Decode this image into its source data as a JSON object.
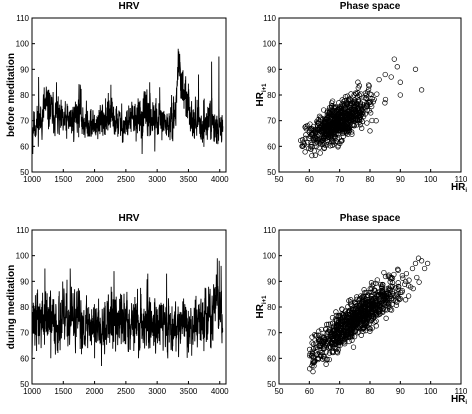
{
  "chart_data": [
    {
      "id": "hrv-before",
      "type": "line",
      "title": "HRV",
      "ylabel": "before meditation",
      "xlabel": "",
      "xlim": [
        1000,
        4100
      ],
      "ylim": [
        50,
        110
      ],
      "xticks": [
        1000,
        1500,
        2000,
        2500,
        3000,
        3500,
        4000
      ],
      "yticks": [
        50,
        60,
        70,
        80,
        90,
        100,
        110
      ],
      "segments": [
        {
          "x": [
            1000,
            1150,
            1200,
            1380,
            1450,
            1650,
            1750,
            1800,
            2000,
            2050,
            2200,
            2300,
            2500,
            2550,
            2700,
            2800,
            3000,
            3100,
            3200,
            3300,
            3320,
            3350,
            3380,
            3420,
            3500,
            3550,
            3650,
            3700,
            3750,
            3800,
            3850,
            3900,
            3950,
            4000,
            4050
          ],
          "mean": [
            68,
            70,
            76,
            72,
            69,
            70,
            75,
            70,
            68,
            69,
            72,
            70,
            68,
            70,
            71,
            72,
            70,
            69,
            68,
            74,
            88,
            90,
            86,
            80,
            75,
            72,
            69,
            67,
            70,
            68,
            72,
            66,
            68,
            66,
            67
          ],
          "amp": [
            7,
            8,
            10,
            8,
            8,
            8,
            10,
            8,
            7,
            8,
            9,
            8,
            7,
            8,
            8,
            9,
            8,
            7,
            7,
            9,
            8,
            7,
            8,
            10,
            9,
            8,
            8,
            7,
            10,
            8,
            11,
            7,
            7,
            6,
            6
          ]
        }
      ],
      "seed": 11,
      "n_points": 1240,
      "spikes": [
        [
          1105,
          87
        ],
        [
          1390,
          85
        ],
        [
          1770,
          84
        ],
        [
          2260,
          84
        ],
        [
          2880,
          85
        ],
        [
          3040,
          83
        ],
        [
          3335,
          98
        ],
        [
          3345,
          97
        ],
        [
          3360,
          96
        ],
        [
          3660,
          88
        ],
        [
          3870,
          93
        ],
        [
          3985,
          95
        ],
        [
          1010,
          57
        ],
        [
          2760,
          57
        ],
        [
          2960,
          58
        ]
      ]
    },
    {
      "id": "phase-before",
      "type": "scatter",
      "title": "Phase space",
      "ylabel": "HR",
      "ylabel_sub": "i+1",
      "xlabel": "HR",
      "xlabel_sub": "i",
      "xlim": [
        50,
        110
      ],
      "ylim": [
        50,
        110
      ],
      "xticks": [
        50,
        60,
        70,
        80,
        90,
        100,
        110
      ],
      "yticks": [
        50,
        60,
        70,
        80,
        90,
        100,
        110
      ],
      "cloud": {
        "center": [
          70,
          70
        ],
        "spread_major": 6.5,
        "spread_minor": 2.8,
        "x_min": 57,
        "x_max": 90,
        "n_points": 700
      },
      "seed": 23,
      "extras": [
        [
          88,
          94
        ],
        [
          90,
          85
        ],
        [
          95,
          90
        ],
        [
          87,
          87
        ],
        [
          85,
          88
        ],
        [
          83,
          86
        ],
        [
          97,
          82
        ],
        [
          90,
          80
        ],
        [
          80,
          66
        ],
        [
          82,
          70
        ],
        [
          76,
          85
        ],
        [
          89,
          91
        ]
      ]
    },
    {
      "id": "hrv-during",
      "type": "line",
      "title": "HRV",
      "ylabel": "during meditation",
      "xlabel": "",
      "xlim": [
        1000,
        4100
      ],
      "ylim": [
        50,
        110
      ],
      "xticks": [
        1000,
        1500,
        2000,
        2500,
        3000,
        3500,
        4000
      ],
      "yticks": [
        50,
        60,
        70,
        80,
        90,
        100,
        110
      ],
      "segments": [
        {
          "x": [
            1000,
            1200,
            1400,
            1600,
            1800,
            2000,
            2200,
            2400,
            2600,
            2800,
            3000,
            3200,
            3400,
            3550,
            3700,
            3850,
            3950,
            4000,
            4050
          ],
          "mean": [
            74,
            75,
            74,
            75,
            74,
            73,
            75,
            74,
            75,
            74,
            74,
            73,
            74,
            72,
            75,
            76,
            82,
            78,
            76
          ],
          "amp": [
            12,
            13,
            12,
            13,
            12,
            11,
            13,
            12,
            13,
            12,
            12,
            11,
            12,
            10,
            12,
            13,
            11,
            12,
            11
          ]
        }
      ],
      "seed": 37,
      "n_points": 1300,
      "spikes": [
        [
          1205,
          95
        ],
        [
          1610,
          95
        ],
        [
          2310,
          94
        ],
        [
          2850,
          93
        ],
        [
          3150,
          93
        ],
        [
          3960,
          99
        ],
        [
          3990,
          98
        ],
        [
          4020,
          96
        ],
        [
          1300,
          60
        ],
        [
          2000,
          60
        ],
        [
          2700,
          60
        ],
        [
          3550,
          61
        ]
      ]
    },
    {
      "id": "phase-during",
      "type": "scatter",
      "title": "Phase space",
      "ylabel": "HR",
      "ylabel_sub": "i+1",
      "xlabel": "HR",
      "xlabel_sub": "i",
      "xlim": [
        50,
        110
      ],
      "ylim": [
        50,
        110
      ],
      "xticks": [
        50,
        60,
        70,
        80,
        90,
        100,
        110
      ],
      "yticks": [
        50,
        60,
        70,
        80,
        90,
        100,
        110
      ],
      "cloud": {
        "center": [
          75,
          75
        ],
        "spread_major": 9.5,
        "spread_minor": 2.6,
        "x_min": 60,
        "x_max": 99,
        "n_points": 900
      },
      "seed": 51,
      "extras": [
        [
          97,
          98
        ],
        [
          99,
          97
        ],
        [
          96,
          99
        ],
        [
          95,
          97
        ],
        [
          92,
          93
        ],
        [
          94,
          95
        ],
        [
          98,
          95
        ],
        [
          63,
          60
        ],
        [
          61,
          62
        ]
      ]
    }
  ]
}
